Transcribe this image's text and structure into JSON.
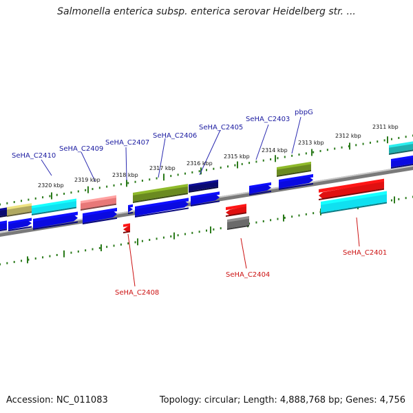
{
  "title": "Salmonella enterica subsp. enterica serovar Heidelberg str. ...",
  "footer": {
    "accession": "Accession: NC_011083",
    "stats": "Topology: circular; Length: 4,888,768 bp; Genes: 4,756"
  },
  "scale_labels": [
    "2320 kbp",
    "2319 kbp",
    "2318 kbp",
    "2317 kbp",
    "2316 kbp",
    "2315 kbp",
    "2314 kbp",
    "2313 kbp",
    "2312 kbp",
    "2311 kbp"
  ],
  "gene_labels_top": [
    "SeHA_C2410",
    "SeHA_C2409",
    "SeHA_C2407",
    "SeHA_C2406",
    "SeHA_C2405",
    "SeHA_C2403",
    "pbpG"
  ],
  "gene_labels_bottom": [
    "SeHA_C2408",
    "SeHA_C2404",
    "SeHA_C2401"
  ],
  "colors": {
    "backbone": "#7a7a7a",
    "tick": "#2a7a1a",
    "blue": "#0a0ae0",
    "red": "#e01010",
    "cyan": "#10e0f0",
    "olive": "#6a8a20",
    "pink": "#e87878",
    "grey": "#6a6a6a",
    "teal": "#20b0b0",
    "khaki": "#b0a860",
    "navy": "#0a0a70",
    "label_blue": "#1a1aa0",
    "label_red": "#cc1111"
  }
}
